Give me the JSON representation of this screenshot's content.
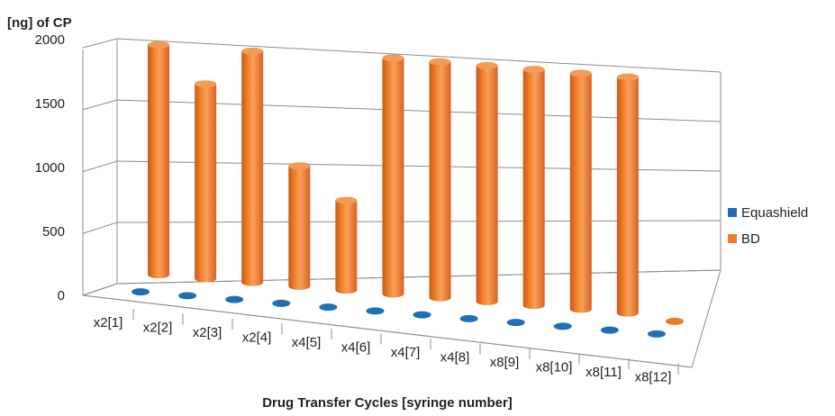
{
  "chart_data": {
    "type": "bar",
    "style": "3d-cylinder",
    "ylabel": "[ng] of CP",
    "xlabel": "Drug Transfer Cycles [syringe number]",
    "ylim": [
      0,
      2000
    ],
    "yticks": [
      "0",
      "500",
      "1000",
      "1500",
      "2000"
    ],
    "grid": true,
    "legend_position": "right",
    "categories": [
      "x2[1]",
      "x2[2]",
      "x2[3]",
      "x2[4]",
      "x4[5]",
      "x4[6]",
      "x4[7]",
      "x4[8]",
      "x8[9]",
      "x8[10]",
      "x8[11]",
      "x8[12]"
    ],
    "series": [
      {
        "name": "Equashield",
        "color": "#1f6fb5",
        "values": [
          0,
          0,
          0,
          0,
          0,
          0,
          0,
          0,
          0,
          0,
          0,
          0
        ]
      },
      {
        "name": "BD",
        "color": "#f07a28",
        "values": [
          1950,
          1650,
          1960,
          1020,
          760,
          2000,
          2000,
          2000,
          2000,
          2000,
          2000,
          0
        ]
      }
    ]
  }
}
